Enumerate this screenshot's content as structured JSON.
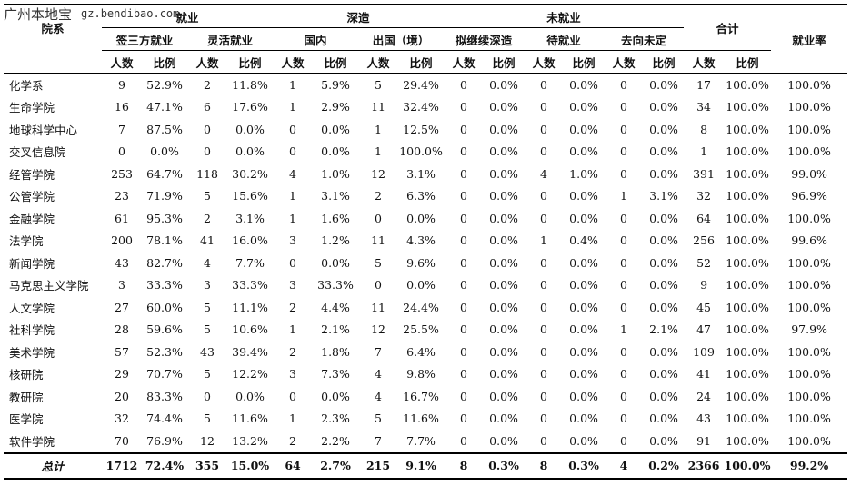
{
  "watermark": {
    "logo": "广州本地宝",
    "url": "gz.bendibao.com"
  },
  "header": {
    "dept": "院系",
    "employed": "就业",
    "third_party": "签三方就业",
    "flexible": "灵活就业",
    "further_study": "深造",
    "domestic": "国内",
    "abroad": "出国（境）",
    "not_employed": "未就业",
    "pending_study": "拟继续深造",
    "waiting": "待就业",
    "undecided": "去向未定",
    "total": "合计",
    "rate": "就业率",
    "count": "人数",
    "ratio": "比例"
  },
  "rows": [
    {
      "name": "化学系",
      "c": [
        "9",
        "52.9%",
        "2",
        "11.8%",
        "1",
        "5.9%",
        "5",
        "29.4%",
        "0",
        "0.0%",
        "0",
        "0.0%",
        "0",
        "0.0%",
        "17",
        "100.0%",
        "100.0%"
      ]
    },
    {
      "name": "生命学院",
      "c": [
        "16",
        "47.1%",
        "6",
        "17.6%",
        "1",
        "2.9%",
        "11",
        "32.4%",
        "0",
        "0.0%",
        "0",
        "0.0%",
        "0",
        "0.0%",
        "34",
        "100.0%",
        "100.0%"
      ]
    },
    {
      "name": "地球科学中心",
      "c": [
        "7",
        "87.5%",
        "0",
        "0.0%",
        "0",
        "0.0%",
        "1",
        "12.5%",
        "0",
        "0.0%",
        "0",
        "0.0%",
        "0",
        "0.0%",
        "8",
        "100.0%",
        "100.0%"
      ]
    },
    {
      "name": "交叉信息院",
      "c": [
        "0",
        "0.0%",
        "0",
        "0.0%",
        "0",
        "0.0%",
        "1",
        "100.0%",
        "0",
        "0.0%",
        "0",
        "0.0%",
        "0",
        "0.0%",
        "1",
        "100.0%",
        "100.0%"
      ]
    },
    {
      "name": "经管学院",
      "c": [
        "253",
        "64.7%",
        "118",
        "30.2%",
        "4",
        "1.0%",
        "12",
        "3.1%",
        "0",
        "0.0%",
        "4",
        "1.0%",
        "0",
        "0.0%",
        "391",
        "100.0%",
        "99.0%"
      ]
    },
    {
      "name": "公管学院",
      "c": [
        "23",
        "71.9%",
        "5",
        "15.6%",
        "1",
        "3.1%",
        "2",
        "6.3%",
        "0",
        "0.0%",
        "0",
        "0.0%",
        "1",
        "3.1%",
        "32",
        "100.0%",
        "96.9%"
      ]
    },
    {
      "name": "金融学院",
      "c": [
        "61",
        "95.3%",
        "2",
        "3.1%",
        "1",
        "1.6%",
        "0",
        "0.0%",
        "0",
        "0.0%",
        "0",
        "0.0%",
        "0",
        "0.0%",
        "64",
        "100.0%",
        "100.0%"
      ]
    },
    {
      "name": "法学院",
      "c": [
        "200",
        "78.1%",
        "41",
        "16.0%",
        "3",
        "1.2%",
        "11",
        "4.3%",
        "0",
        "0.0%",
        "1",
        "0.4%",
        "0",
        "0.0%",
        "256",
        "100.0%",
        "99.6%"
      ]
    },
    {
      "name": "新闻学院",
      "c": [
        "43",
        "82.7%",
        "4",
        "7.7%",
        "0",
        "0.0%",
        "5",
        "9.6%",
        "0",
        "0.0%",
        "0",
        "0.0%",
        "0",
        "0.0%",
        "52",
        "100.0%",
        "100.0%"
      ]
    },
    {
      "name": "马克思主义学院",
      "c": [
        "3",
        "33.3%",
        "3",
        "33.3%",
        "3",
        "33.3%",
        "0",
        "0.0%",
        "0",
        "0.0%",
        "0",
        "0.0%",
        "0",
        "0.0%",
        "9",
        "100.0%",
        "100.0%"
      ]
    },
    {
      "name": "人文学院",
      "c": [
        "27",
        "60.0%",
        "5",
        "11.1%",
        "2",
        "4.4%",
        "11",
        "24.4%",
        "0",
        "0.0%",
        "0",
        "0.0%",
        "0",
        "0.0%",
        "45",
        "100.0%",
        "100.0%"
      ]
    },
    {
      "name": "社科学院",
      "c": [
        "28",
        "59.6%",
        "5",
        "10.6%",
        "1",
        "2.1%",
        "12",
        "25.5%",
        "0",
        "0.0%",
        "0",
        "0.0%",
        "1",
        "2.1%",
        "47",
        "100.0%",
        "97.9%"
      ]
    },
    {
      "name": "美术学院",
      "c": [
        "57",
        "52.3%",
        "43",
        "39.4%",
        "2",
        "1.8%",
        "7",
        "6.4%",
        "0",
        "0.0%",
        "0",
        "0.0%",
        "0",
        "0.0%",
        "109",
        "100.0%",
        "100.0%"
      ]
    },
    {
      "name": "核研院",
      "c": [
        "29",
        "70.7%",
        "5",
        "12.2%",
        "3",
        "7.3%",
        "4",
        "9.8%",
        "0",
        "0.0%",
        "0",
        "0.0%",
        "0",
        "0.0%",
        "41",
        "100.0%",
        "100.0%"
      ]
    },
    {
      "name": "教研院",
      "c": [
        "20",
        "83.3%",
        "0",
        "0.0%",
        "0",
        "0.0%",
        "4",
        "16.7%",
        "0",
        "0.0%",
        "0",
        "0.0%",
        "0",
        "0.0%",
        "24",
        "100.0%",
        "100.0%"
      ]
    },
    {
      "name": "医学院",
      "c": [
        "32",
        "74.4%",
        "5",
        "11.6%",
        "1",
        "2.3%",
        "5",
        "11.6%",
        "0",
        "0.0%",
        "0",
        "0.0%",
        "0",
        "0.0%",
        "43",
        "100.0%",
        "100.0%"
      ]
    },
    {
      "name": "软件学院",
      "c": [
        "70",
        "76.9%",
        "12",
        "13.2%",
        "2",
        "2.2%",
        "7",
        "7.7%",
        "0",
        "0.0%",
        "0",
        "0.0%",
        "0",
        "0.0%",
        "91",
        "100.0%",
        "100.0%"
      ]
    }
  ],
  "total_row": {
    "name": "总计",
    "c": [
      "1712",
      "72.4%",
      "355",
      "15.0%",
      "64",
      "2.7%",
      "215",
      "9.1%",
      "8",
      "0.3%",
      "8",
      "0.3%",
      "4",
      "0.2%",
      "2366",
      "100.0%",
      "99.2%"
    ]
  }
}
